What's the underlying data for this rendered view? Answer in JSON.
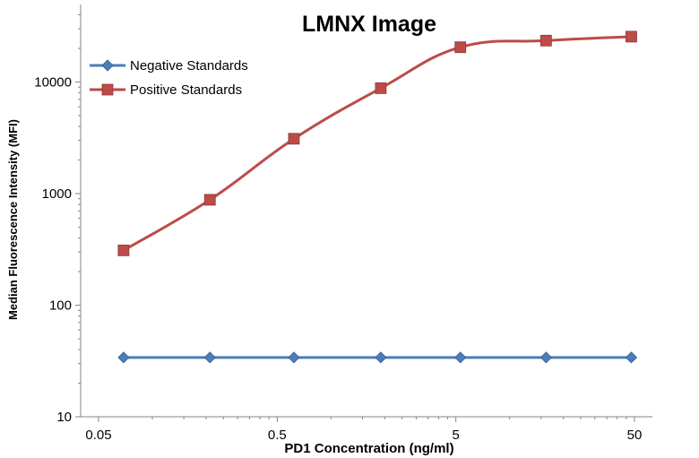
{
  "chart_data": {
    "type": "line",
    "title": "LMNX Image",
    "xlabel": "PD1 Concentration  (ng/ml)",
    "ylabel": "Median Fluorescence Intensity (MFI)",
    "x_scale": "log",
    "y_scale": "log",
    "xlim": [
      0.05,
      50
    ],
    "ylim": [
      10,
      40000
    ],
    "x_ticks": [
      {
        "value": 0.05,
        "label": "0.05"
      },
      {
        "value": 0.5,
        "label": "0.5"
      },
      {
        "value": 5,
        "label": "5"
      },
      {
        "value": 50,
        "label": "50"
      }
    ],
    "y_ticks": [
      {
        "value": 10,
        "label": "10"
      },
      {
        "value": 100,
        "label": "100"
      },
      {
        "value": 1000,
        "label": "1000"
      },
      {
        "value": 10000,
        "label": "10000"
      }
    ],
    "x": [
      0.069,
      0.21,
      0.62,
      1.9,
      5.3,
      16,
      48
    ],
    "series": [
      {
        "name": "Negative Standards",
        "color": "#4a7ebb",
        "marker": "diamond",
        "values": [
          34,
          34,
          34,
          34,
          34,
          34,
          34
        ]
      },
      {
        "name": "Positive Standards",
        "color": "#be4b48",
        "marker": "square",
        "values": [
          310,
          880,
          3100,
          8800,
          20500,
          23500,
          25500
        ]
      }
    ],
    "legend_position": "top-left",
    "grid": false
  }
}
